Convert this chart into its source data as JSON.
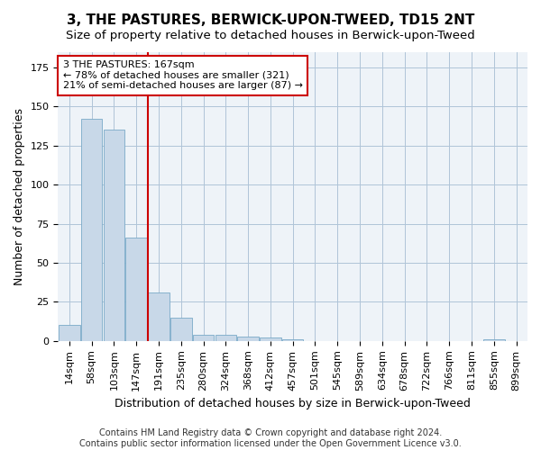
{
  "title": "3, THE PASTURES, BERWICK-UPON-TWEED, TD15 2NT",
  "subtitle": "Size of property relative to detached houses in Berwick-upon-Tweed",
  "xlabel": "Distribution of detached houses by size in Berwick-upon-Tweed",
  "ylabel": "Number of detached properties",
  "categories": [
    "14sqm",
    "58sqm",
    "103sqm",
    "147sqm",
    "191sqm",
    "235sqm",
    "280sqm",
    "324sqm",
    "368sqm",
    "412sqm",
    "457sqm",
    "501sqm",
    "545sqm",
    "589sqm",
    "634sqm",
    "678sqm",
    "722sqm",
    "766sqm",
    "811sqm",
    "855sqm",
    "899sqm"
  ],
  "values": [
    10,
    142,
    135,
    66,
    31,
    15,
    4,
    4,
    3,
    2,
    1,
    0,
    0,
    0,
    0,
    0,
    0,
    0,
    0,
    1,
    0
  ],
  "bar_color": "#c8d8e8",
  "bar_edge_color": "#7aaac8",
  "vline_x": 3.5,
  "vline_color": "#cc0000",
  "annotation_text": "3 THE PASTURES: 167sqm\n← 78% of detached houses are smaller (321)\n21% of semi-detached houses are larger (87) →",
  "annotation_box_color": "#ffffff",
  "annotation_box_edge": "#cc0000",
  "annotation_fontsize": 8.0,
  "title_fontsize": 11,
  "subtitle_fontsize": 9.5,
  "xlabel_fontsize": 9,
  "ylabel_fontsize": 9,
  "tick_fontsize": 8,
  "footer_text": "Contains HM Land Registry data © Crown copyright and database right 2024.\nContains public sector information licensed under the Open Government Licence v3.0.",
  "footer_fontsize": 7,
  "ylim": [
    0,
    185
  ],
  "grid_color": "#b0c4d8",
  "bg_color": "#eef3f8"
}
